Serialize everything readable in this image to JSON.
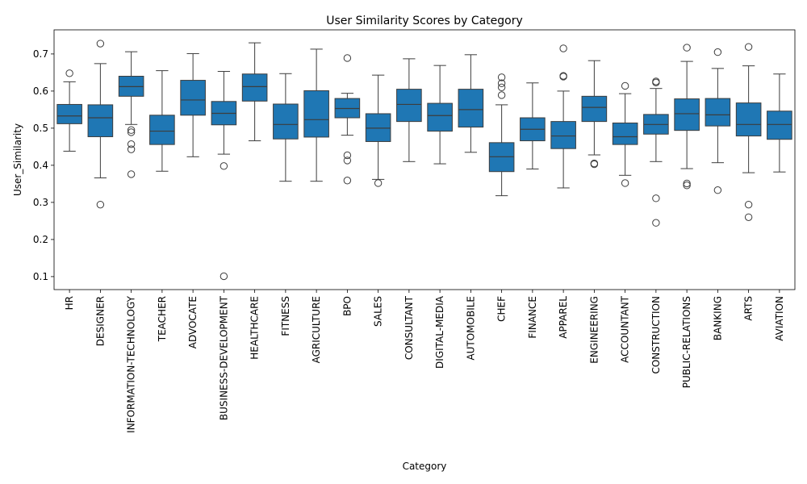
{
  "chart_data": {
    "type": "box",
    "title": "User Similarity Scores by Category",
    "xlabel": "Category",
    "ylabel": "User_Similarity",
    "ylim": [
      0.065,
      0.765
    ],
    "yticks": [
      "0.1",
      "0.2",
      "0.3",
      "0.4",
      "0.5",
      "0.6",
      "0.7"
    ],
    "grid": false,
    "box_color": "#1f77b4",
    "categories": [
      "HR",
      "DESIGNER",
      "INFORMATION-TECHNOLOGY",
      "TEACHER",
      "ADVOCATE",
      "BUSINESS-DEVELOPMENT",
      "HEALTHCARE",
      "FITNESS",
      "AGRICULTURE",
      "BPO",
      "SALES",
      "CONSULTANT",
      "DIGITAL-MEDIA",
      "AUTOMOBILE",
      "CHEF",
      "FINANCE",
      "APPAREL",
      "ENGINEERING",
      "ACCOUNTANT",
      "CONSTRUCTION",
      "PUBLIC-RELATIONS",
      "BANKING",
      "ARTS",
      "AVIATION"
    ],
    "boxes": [
      {
        "category": "HR",
        "whislo": 0.438,
        "q1": 0.512,
        "med": 0.533,
        "q3": 0.564,
        "whishi": 0.625,
        "fliers": [
          0.648
        ]
      },
      {
        "category": "DESIGNER",
        "whislo": 0.366,
        "q1": 0.477,
        "med": 0.528,
        "q3": 0.563,
        "whishi": 0.674,
        "fliers": [
          0.728,
          0.294
        ]
      },
      {
        "category": "INFORMATION-TECHNOLOGY",
        "whislo": 0.51,
        "q1": 0.586,
        "med": 0.612,
        "q3": 0.64,
        "whishi": 0.706,
        "fliers": [
          0.495,
          0.489,
          0.457,
          0.443,
          0.376
        ]
      },
      {
        "category": "TEACHER",
        "whislo": 0.384,
        "q1": 0.456,
        "med": 0.492,
        "q3": 0.535,
        "whishi": 0.655,
        "fliers": []
      },
      {
        "category": "ADVOCATE",
        "whislo": 0.423,
        "q1": 0.535,
        "med": 0.576,
        "q3": 0.629,
        "whishi": 0.701,
        "fliers": []
      },
      {
        "category": "BUSINESS-DEVELOPMENT",
        "whislo": 0.43,
        "q1": 0.509,
        "med": 0.54,
        "q3": 0.572,
        "whishi": 0.653,
        "fliers": [
          0.398,
          0.101
        ]
      },
      {
        "category": "HEALTHCARE",
        "whislo": 0.466,
        "q1": 0.573,
        "med": 0.612,
        "q3": 0.646,
        "whishi": 0.73,
        "fliers": []
      },
      {
        "category": "FITNESS",
        "whislo": 0.357,
        "q1": 0.471,
        "med": 0.51,
        "q3": 0.565,
        "whishi": 0.647,
        "fliers": []
      },
      {
        "category": "AGRICULTURE",
        "whislo": 0.357,
        "q1": 0.476,
        "med": 0.523,
        "q3": 0.601,
        "whishi": 0.713,
        "fliers": []
      },
      {
        "category": "BPO",
        "whislo": 0.481,
        "q1": 0.528,
        "med": 0.553,
        "q3": 0.58,
        "whishi": 0.594,
        "fliers": [
          0.689,
          0.427,
          0.413,
          0.359
        ]
      },
      {
        "category": "SALES",
        "whislo": 0.362,
        "q1": 0.464,
        "med": 0.5,
        "q3": 0.539,
        "whishi": 0.643,
        "fliers": [
          0.352
        ]
      },
      {
        "category": "CONSULTANT",
        "whislo": 0.41,
        "q1": 0.518,
        "med": 0.564,
        "q3": 0.605,
        "whishi": 0.687,
        "fliers": []
      },
      {
        "category": "DIGITAL-MEDIA",
        "whislo": 0.404,
        "q1": 0.492,
        "med": 0.534,
        "q3": 0.567,
        "whishi": 0.669,
        "fliers": []
      },
      {
        "category": "AUTOMOBILE",
        "whislo": 0.435,
        "q1": 0.503,
        "med": 0.55,
        "q3": 0.605,
        "whishi": 0.698,
        "fliers": []
      },
      {
        "category": "CHEF",
        "whislo": 0.318,
        "q1": 0.383,
        "med": 0.423,
        "q3": 0.461,
        "whishi": 0.563,
        "fliers": [
          0.637,
          0.621,
          0.61,
          0.589
        ]
      },
      {
        "category": "FINANCE",
        "whislo": 0.39,
        "q1": 0.466,
        "med": 0.497,
        "q3": 0.528,
        "whishi": 0.622,
        "fliers": []
      },
      {
        "category": "APPAREL",
        "whislo": 0.339,
        "q1": 0.445,
        "med": 0.479,
        "q3": 0.518,
        "whishi": 0.6,
        "fliers": [
          0.715,
          0.641,
          0.639
        ]
      },
      {
        "category": "ENGINEERING",
        "whislo": 0.428,
        "q1": 0.518,
        "med": 0.556,
        "q3": 0.586,
        "whishi": 0.682,
        "fliers": [
          0.405,
          0.403
        ]
      },
      {
        "category": "ACCOUNTANT",
        "whislo": 0.373,
        "q1": 0.456,
        "med": 0.477,
        "q3": 0.514,
        "whishi": 0.593,
        "fliers": [
          0.614,
          0.352
        ]
      },
      {
        "category": "CONSTRUCTION",
        "whislo": 0.41,
        "q1": 0.484,
        "med": 0.51,
        "q3": 0.537,
        "whishi": 0.607,
        "fliers": [
          0.626,
          0.623,
          0.311,
          0.245
        ]
      },
      {
        "category": "PUBLIC-RELATIONS",
        "whislo": 0.391,
        "q1": 0.494,
        "med": 0.539,
        "q3": 0.579,
        "whishi": 0.68,
        "fliers": [
          0.717,
          0.351,
          0.346
        ]
      },
      {
        "category": "BANKING",
        "whislo": 0.407,
        "q1": 0.506,
        "med": 0.536,
        "q3": 0.58,
        "whishi": 0.661,
        "fliers": [
          0.705,
          0.333
        ]
      },
      {
        "category": "ARTS",
        "whislo": 0.38,
        "q1": 0.479,
        "med": 0.51,
        "q3": 0.568,
        "whishi": 0.668,
        "fliers": [
          0.719,
          0.294,
          0.26
        ]
      },
      {
        "category": "AVIATION",
        "whislo": 0.382,
        "q1": 0.47,
        "med": 0.51,
        "q3": 0.546,
        "whishi": 0.646,
        "fliers": []
      }
    ]
  }
}
